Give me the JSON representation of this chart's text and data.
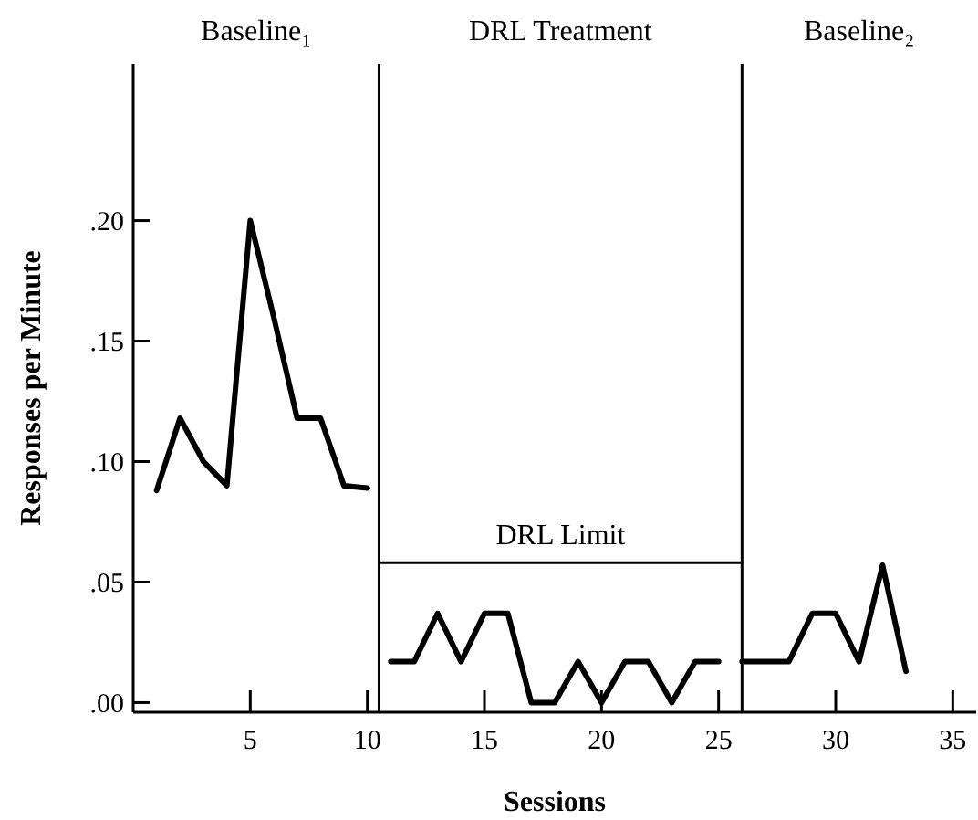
{
  "chart_data": {
    "type": "line",
    "xlabel": "Sessions",
    "ylabel": "Responses per Minute",
    "xlim": [
      0,
      36
    ],
    "ylim": [
      -0.004,
      0.265
    ],
    "xticks": [
      5,
      10,
      15,
      20,
      25,
      30,
      35
    ],
    "yticks": [
      {
        "value": 0,
        "label": ".00"
      },
      {
        "value": 0.05,
        "label": ".05"
      },
      {
        "value": 0.1,
        "label": ".10"
      },
      {
        "value": 0.15,
        "label": ".15"
      },
      {
        "value": 0.2,
        "label": ".20"
      }
    ],
    "grid": false,
    "marker": "none",
    "line_style": "solid",
    "series": [
      {
        "color": "#000000",
        "x": [
          1,
          2,
          3,
          4,
          5,
          6,
          7,
          8,
          9,
          10
        ],
        "values": [
          0.088,
          0.118,
          0.1,
          0.09,
          0.2,
          0.16,
          0.118,
          0.118,
          0.09,
          0.089
        ]
      },
      {
        "color": "#000000",
        "x": [
          11,
          12,
          13,
          14,
          15,
          16,
          17,
          18,
          19,
          20,
          21,
          22,
          23,
          24,
          25
        ],
        "values": [
          0.017,
          0.017,
          0.037,
          0.017,
          0.037,
          0.037,
          0,
          0,
          0.017,
          0,
          0.017,
          0.017,
          0,
          0.017,
          0.017
        ]
      },
      {
        "color": "#000000",
        "x": [
          26,
          27,
          28,
          29,
          30,
          31,
          32,
          33
        ],
        "values": [
          0.017,
          0.017,
          0.017,
          0.037,
          0.037,
          0.017,
          0.057,
          0.013
        ]
      }
    ],
    "ref_lines": [
      {
        "axis": "x",
        "value": 10.5
      },
      {
        "axis": "x",
        "value": 26
      },
      {
        "axis": "y",
        "value": 0.058,
        "label": "DRL Limit"
      }
    ],
    "annotations": [
      "Baseline₁",
      "DRL Treatment",
      "Baseline₂"
    ]
  }
}
